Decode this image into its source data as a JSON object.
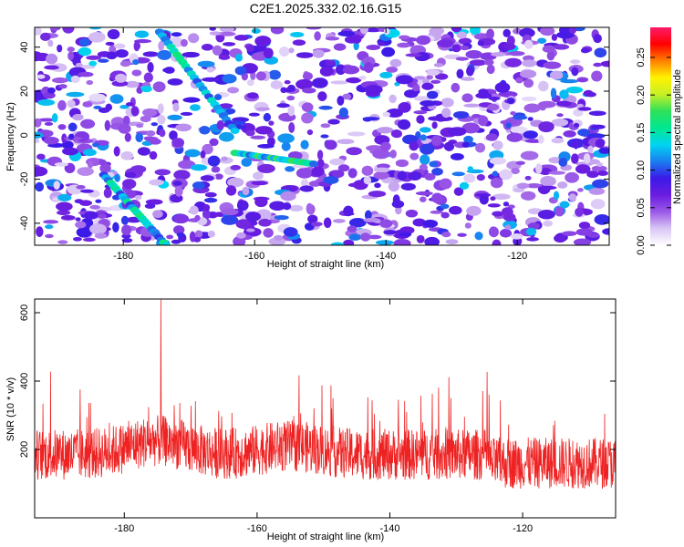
{
  "title": "C2E1.2025.332.02.16.G15",
  "chart_data": [
    {
      "type": "heatmap",
      "xlabel": "Height of straight line (km)",
      "ylabel": "Frequency (Hz)",
      "xlim": [
        -193.5,
        -106
      ],
      "ylim": [
        -50,
        49
      ],
      "xticks": [
        -180,
        -160,
        -140,
        -120
      ],
      "yticks": [
        -40,
        -20,
        0,
        20,
        40
      ],
      "colorbar": {
        "label": "Normalized spectral amplitude",
        "range": [
          0,
          0.29
        ],
        "ticks": [
          0,
          0.05,
          0.1,
          0.15,
          0.2,
          0.25
        ],
        "tick_labels": [
          "0.00",
          "0.05",
          "0.10",
          "0.15",
          "0.20",
          "0.25"
        ],
        "colors": [
          "#ffffff",
          "#d9c6f5",
          "#9b59e6",
          "#6a1de0",
          "#3b1ae8",
          "#1a7ef0",
          "#00d4f0",
          "#00e890",
          "#2ee05a",
          "#c6f026",
          "#fff200",
          "#ff8000",
          "#ff0000",
          "#ff1b6b"
        ]
      },
      "features": [
        {
          "name": "upper-diagonal-streak",
          "x_range": [
            -174.5,
            -163
          ],
          "y_range": [
            47,
            2
          ],
          "peak_amplitude": 0.17
        },
        {
          "name": "lower-diagonal-streak",
          "x_range": [
            -183,
            -173.5
          ],
          "y_range": [
            -18,
            -50
          ],
          "peak_amplitude": 0.17
        },
        {
          "name": "mid-blobs",
          "x_range": [
            -163,
            -151
          ],
          "y_range": [
            -8,
            -13
          ],
          "peak_amplitude": 0.19
        }
      ]
    },
    {
      "type": "line",
      "xlabel": "Height of straight line (km)",
      "ylabel": "SNR (10 * v/v)",
      "xlim": [
        -193.5,
        -106
      ],
      "ylim": [
        0,
        640
      ],
      "xticks": [
        -180,
        -160,
        -140,
        -120
      ],
      "yticks": [
        200,
        400,
        600
      ],
      "series": [
        {
          "name": "SNR",
          "color": "#ee2222",
          "n_points": 1750,
          "baseline_mean": 185,
          "peak_x": -174.5,
          "peak_value": 638
        }
      ]
    }
  ]
}
